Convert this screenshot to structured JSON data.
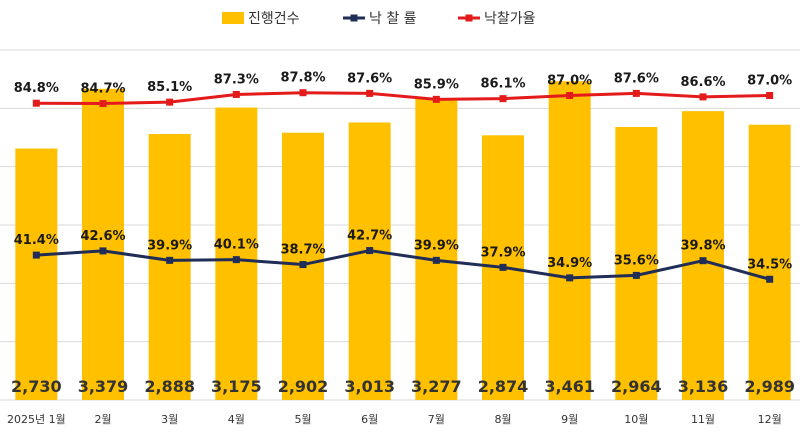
{
  "chart_data": {
    "type": "bar",
    "categories": [
      "2025년 1월",
      "2월",
      "3월",
      "4월",
      "5월",
      "6월",
      "7월",
      "8월",
      "9월",
      "10월",
      "11월",
      "12월"
    ],
    "ylim_left": [
      0,
      3800
    ],
    "ylim_right": [
      0,
      100
    ],
    "grid": true,
    "legend_position": "top",
    "series": [
      {
        "name": "진행건수",
        "kind": "bar",
        "axis": "left",
        "color": "#FFC000",
        "values": [
          2730,
          3379,
          2888,
          3175,
          2902,
          3013,
          3277,
          2874,
          3461,
          2964,
          3136,
          2989
        ],
        "labels": [
          "2,730",
          "3,379",
          "2,888",
          "3,175",
          "2,902",
          "3,013",
          "3,277",
          "2,874",
          "3,461",
          "2,964",
          "3,136",
          "2,989"
        ]
      },
      {
        "name": "낙 찰 률",
        "kind": "line",
        "axis": "right",
        "color": "#1F2D57",
        "values": [
          41.4,
          42.6,
          39.9,
          40.1,
          38.7,
          42.7,
          39.9,
          37.9,
          34.9,
          35.6,
          39.8,
          34.5
        ],
        "labels": [
          "41.4%",
          "42.6%",
          "39.9%",
          "40.1%",
          "38.7%",
          "42.7%",
          "39.9%",
          "37.9%",
          "34.9%",
          "35.6%",
          "39.8%",
          "34.5%"
        ]
      },
      {
        "name": "낙찰가율",
        "kind": "line",
        "axis": "right",
        "color": "#E31B1B",
        "values": [
          84.8,
          84.7,
          85.1,
          87.3,
          87.8,
          87.6,
          85.9,
          86.1,
          87.0,
          87.6,
          86.6,
          87.0
        ],
        "labels": [
          "84.8%",
          "84.7%",
          "85.1%",
          "87.3%",
          "87.8%",
          "87.6%",
          "85.9%",
          "86.1%",
          "87.0%",
          "87.6%",
          "86.6%",
          "87.0%"
        ]
      }
    ]
  }
}
